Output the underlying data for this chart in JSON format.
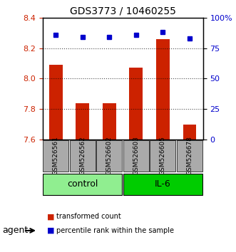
{
  "title": "GDS3773 / 10460255",
  "samples": [
    "GSM526561",
    "GSM526562",
    "GSM526602",
    "GSM526603",
    "GSM526605",
    "GSM526678"
  ],
  "red_values": [
    8.09,
    7.84,
    7.84,
    8.07,
    8.26,
    7.7
  ],
  "blue_values_pct": [
    86,
    84,
    84,
    86,
    88,
    83
  ],
  "ylim_left": [
    7.6,
    8.4
  ],
  "ylim_right": [
    0,
    100
  ],
  "yticks_left": [
    7.6,
    7.8,
    8.0,
    8.2,
    8.4
  ],
  "yticks_right": [
    0,
    25,
    50,
    75,
    100
  ],
  "ytick_labels_right": [
    "0",
    "25",
    "50",
    "75",
    "100%"
  ],
  "groups": [
    {
      "label": "control",
      "indices": [
        0,
        1,
        2
      ],
      "color": "#90EE90"
    },
    {
      "label": "IL-6",
      "indices": [
        3,
        4,
        5
      ],
      "color": "#00CC00"
    }
  ],
  "bar_color": "#CC2200",
  "dot_color": "#0000CC",
  "bar_width": 0.5,
  "grid_color": "#000000",
  "bg_color": "#ffffff",
  "plot_bg": "#ffffff",
  "agent_label": "agent",
  "legend_items": [
    {
      "color": "#CC2200",
      "label": "transformed count"
    },
    {
      "color": "#0000CC",
      "label": "percentile rank within the sample"
    }
  ],
  "tick_label_color_left": "#CC2200",
  "tick_label_color_right": "#0000CC",
  "xlabel_color": "#000000",
  "box_color": "#AAAAAA"
}
